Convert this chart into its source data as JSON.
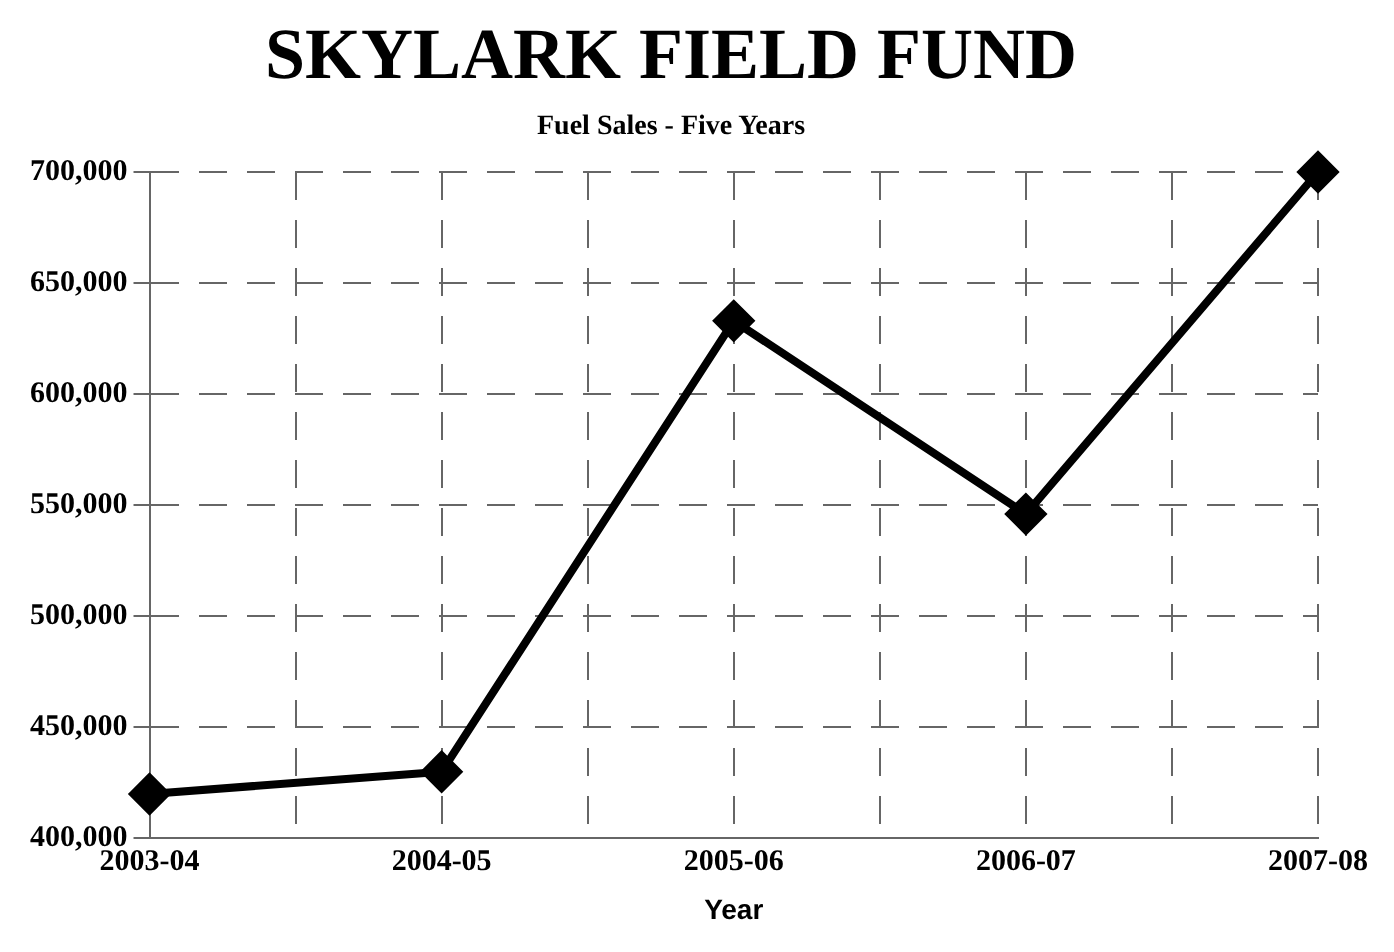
{
  "chart_data": {
    "type": "line",
    "title": "SKYLARK FIELD FUND",
    "subtitle": "Fuel Sales - Five Years",
    "xlabel": "Year",
    "categories": [
      "2003-04",
      "2004-05",
      "2005-06",
      "2006-07",
      "2007-08"
    ],
    "series": [
      {
        "color": "#000000",
        "values": [
          420000,
          430000,
          633000,
          546000,
          700000
        ]
      }
    ],
    "ylim": [
      400000,
      700000
    ],
    "yticks": [
      {
        "value": 400000,
        "label": "400,000"
      },
      {
        "value": 450000,
        "label": "450,000"
      },
      {
        "value": 500000,
        "label": "500,000"
      },
      {
        "value": 550000,
        "label": "550,000"
      },
      {
        "value": 600000,
        "label": "600,000"
      },
      {
        "value": 650000,
        "label": "650,000"
      },
      {
        "value": 700000,
        "label": "700,000"
      }
    ],
    "grid": true,
    "marker": "diamond",
    "line_style": "solid",
    "legend": false
  }
}
